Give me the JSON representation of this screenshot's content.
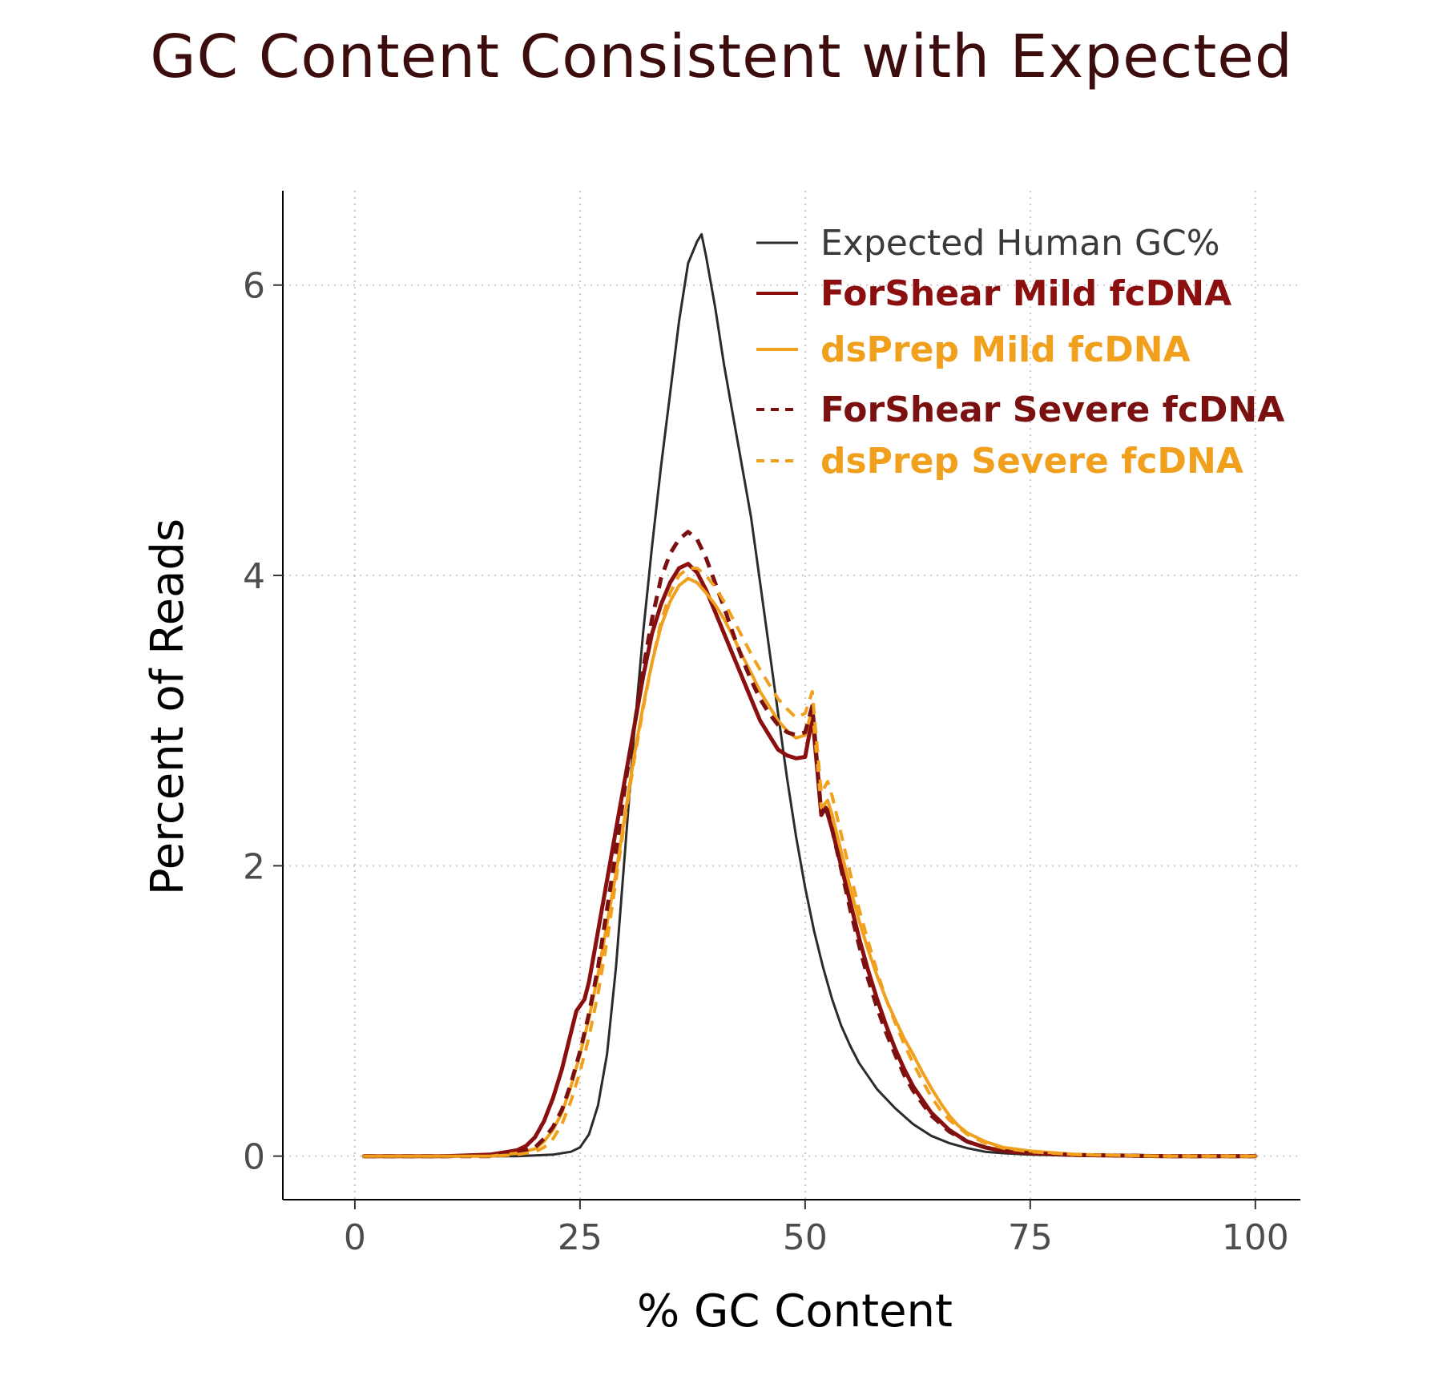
{
  "chart_data": {
    "type": "line",
    "title": "GC Content Consistent with Expected",
    "xlabel": "% GC Content",
    "ylabel": "Percent of Reads",
    "xlim": [
      -8,
      105
    ],
    "ylim": [
      -0.3,
      6.65
    ],
    "xticks": [
      0,
      25,
      50,
      75,
      100
    ],
    "yticks": [
      0,
      2,
      4,
      6
    ],
    "grid": "dotted",
    "legend_position": "top-right",
    "series": [
      {
        "name": "Expected Human GC%",
        "color": "#2b2b2b",
        "dash": "solid",
        "bold": false,
        "width": 3,
        "points": [
          [
            1,
            0
          ],
          [
            10,
            0
          ],
          [
            18,
            0
          ],
          [
            22,
            0.01
          ],
          [
            24,
            0.03
          ],
          [
            25,
            0.06
          ],
          [
            26,
            0.15
          ],
          [
            27,
            0.35
          ],
          [
            28,
            0.7
          ],
          [
            29,
            1.3
          ],
          [
            30,
            2.1
          ],
          [
            31,
            2.9
          ],
          [
            32,
            3.6
          ],
          [
            33,
            4.2
          ],
          [
            34,
            4.75
          ],
          [
            35,
            5.25
          ],
          [
            36,
            5.75
          ],
          [
            37,
            6.15
          ],
          [
            38,
            6.3
          ],
          [
            38.5,
            6.35
          ],
          [
            39,
            6.2
          ],
          [
            40,
            5.85
          ],
          [
            41,
            5.45
          ],
          [
            42,
            5.1
          ],
          [
            43,
            4.75
          ],
          [
            44,
            4.4
          ],
          [
            45,
            3.95
          ],
          [
            46,
            3.5
          ],
          [
            47,
            3.05
          ],
          [
            48,
            2.6
          ],
          [
            49,
            2.2
          ],
          [
            50,
            1.85
          ],
          [
            51,
            1.55
          ],
          [
            52,
            1.3
          ],
          [
            53,
            1.08
          ],
          [
            54,
            0.9
          ],
          [
            55,
            0.76
          ],
          [
            56,
            0.64
          ],
          [
            58,
            0.46
          ],
          [
            60,
            0.33
          ],
          [
            62,
            0.22
          ],
          [
            64,
            0.14
          ],
          [
            66,
            0.09
          ],
          [
            68,
            0.055
          ],
          [
            70,
            0.03
          ],
          [
            72,
            0.02
          ],
          [
            75,
            0.01
          ],
          [
            80,
            0.003
          ],
          [
            90,
            0
          ],
          [
            100,
            0
          ]
        ]
      },
      {
        "name": "ForShear Mild fcDNA",
        "color": "#8b0f0f",
        "dash": "solid",
        "bold": true,
        "width": 5,
        "points": [
          [
            1,
            0
          ],
          [
            10,
            0
          ],
          [
            15,
            0.01
          ],
          [
            18,
            0.04
          ],
          [
            19,
            0.07
          ],
          [
            20,
            0.13
          ],
          [
            21,
            0.24
          ],
          [
            22,
            0.4
          ],
          [
            23,
            0.6
          ],
          [
            24,
            0.85
          ],
          [
            24.6,
            1.0
          ],
          [
            25.5,
            1.08
          ],
          [
            26,
            1.2
          ],
          [
            27,
            1.55
          ],
          [
            28,
            1.9
          ],
          [
            29,
            2.25
          ],
          [
            30,
            2.6
          ],
          [
            31,
            2.95
          ],
          [
            32,
            3.3
          ],
          [
            33,
            3.6
          ],
          [
            34,
            3.8
          ],
          [
            35,
            3.95
          ],
          [
            36,
            4.05
          ],
          [
            37,
            4.08
          ],
          [
            38,
            4.02
          ],
          [
            39,
            3.9
          ],
          [
            40,
            3.75
          ],
          [
            41,
            3.6
          ],
          [
            42,
            3.45
          ],
          [
            43,
            3.3
          ],
          [
            44,
            3.15
          ],
          [
            45,
            3.0
          ],
          [
            46,
            2.9
          ],
          [
            47,
            2.8
          ],
          [
            48,
            2.76
          ],
          [
            49,
            2.74
          ],
          [
            50,
            2.75
          ],
          [
            50.8,
            3.02
          ],
          [
            51,
            2.9
          ],
          [
            51.8,
            2.35
          ],
          [
            52.3,
            2.4
          ],
          [
            53,
            2.25
          ],
          [
            54,
            2.0
          ],
          [
            55,
            1.75
          ],
          [
            56,
            1.5
          ],
          [
            57,
            1.28
          ],
          [
            58,
            1.08
          ],
          [
            59,
            0.9
          ],
          [
            60,
            0.74
          ],
          [
            61,
            0.6
          ],
          [
            62,
            0.48
          ],
          [
            64,
            0.3
          ],
          [
            66,
            0.18
          ],
          [
            68,
            0.1
          ],
          [
            70,
            0.06
          ],
          [
            72,
            0.035
          ],
          [
            75,
            0.02
          ],
          [
            80,
            0.008
          ],
          [
            90,
            0
          ],
          [
            100,
            0
          ]
        ]
      },
      {
        "name": "dsPrep Mild fcDNA",
        "color": "#f0a01c",
        "dash": "solid",
        "bold": true,
        "width": 4,
        "points": [
          [
            1,
            0
          ],
          [
            10,
            0
          ],
          [
            15,
            0
          ],
          [
            18,
            0.02
          ],
          [
            20,
            0.05
          ],
          [
            21,
            0.1
          ],
          [
            22,
            0.18
          ],
          [
            23,
            0.3
          ],
          [
            24,
            0.48
          ],
          [
            25,
            0.7
          ],
          [
            26,
            0.95
          ],
          [
            27,
            1.25
          ],
          [
            28,
            1.6
          ],
          [
            29,
            1.95
          ],
          [
            30,
            2.35
          ],
          [
            31,
            2.75
          ],
          [
            32,
            3.1
          ],
          [
            33,
            3.4
          ],
          [
            34,
            3.65
          ],
          [
            35,
            3.82
          ],
          [
            36,
            3.93
          ],
          [
            37,
            3.98
          ],
          [
            38,
            3.95
          ],
          [
            39,
            3.88
          ],
          [
            40,
            3.8
          ],
          [
            41,
            3.7
          ],
          [
            42,
            3.58
          ],
          [
            43,
            3.45
          ],
          [
            44,
            3.33
          ],
          [
            45,
            3.2
          ],
          [
            46,
            3.1
          ],
          [
            47,
            3.0
          ],
          [
            48,
            2.93
          ],
          [
            49,
            2.88
          ],
          [
            50,
            2.9
          ],
          [
            50.8,
            3.08
          ],
          [
            51,
            2.95
          ],
          [
            51.8,
            2.4
          ],
          [
            52.5,
            2.45
          ],
          [
            53,
            2.35
          ],
          [
            54,
            2.1
          ],
          [
            55,
            1.85
          ],
          [
            56,
            1.62
          ],
          [
            57,
            1.42
          ],
          [
            58,
            1.24
          ],
          [
            59,
            1.08
          ],
          [
            60,
            0.94
          ],
          [
            61,
            0.81
          ],
          [
            62,
            0.7
          ],
          [
            63,
            0.58
          ],
          [
            64,
            0.47
          ],
          [
            65,
            0.37
          ],
          [
            66,
            0.28
          ],
          [
            67,
            0.21
          ],
          [
            68,
            0.16
          ],
          [
            70,
            0.1
          ],
          [
            72,
            0.06
          ],
          [
            75,
            0.035
          ],
          [
            80,
            0.012
          ],
          [
            90,
            0
          ],
          [
            100,
            0
          ]
        ]
      },
      {
        "name": "ForShear Severe fcDNA",
        "color": "#7a1010",
        "dash": "dashed",
        "bold": true,
        "width": 5,
        "points": [
          [
            1,
            0
          ],
          [
            10,
            0
          ],
          [
            15,
            0
          ],
          [
            18,
            0.02
          ],
          [
            20,
            0.06
          ],
          [
            21,
            0.12
          ],
          [
            22,
            0.2
          ],
          [
            23,
            0.32
          ],
          [
            24,
            0.5
          ],
          [
            25,
            0.72
          ],
          [
            26,
            0.98
          ],
          [
            27,
            1.3
          ],
          [
            28,
            1.7
          ],
          [
            29,
            2.1
          ],
          [
            30,
            2.55
          ],
          [
            31,
            2.95
          ],
          [
            32,
            3.35
          ],
          [
            33,
            3.7
          ],
          [
            34,
            3.98
          ],
          [
            35,
            4.15
          ],
          [
            36,
            4.25
          ],
          [
            37,
            4.3
          ],
          [
            38,
            4.25
          ],
          [
            39,
            4.12
          ],
          [
            40,
            3.95
          ],
          [
            41,
            3.78
          ],
          [
            42,
            3.6
          ],
          [
            43,
            3.43
          ],
          [
            44,
            3.28
          ],
          [
            45,
            3.15
          ],
          [
            46,
            3.05
          ],
          [
            47,
            2.97
          ],
          [
            48,
            2.92
          ],
          [
            49,
            2.9
          ],
          [
            50,
            2.92
          ],
          [
            50.8,
            3.1
          ],
          [
            51,
            2.95
          ],
          [
            51.8,
            2.35
          ],
          [
            52.3,
            2.42
          ],
          [
            53,
            2.25
          ],
          [
            54,
            1.98
          ],
          [
            55,
            1.7
          ],
          [
            56,
            1.45
          ],
          [
            57,
            1.22
          ],
          [
            58,
            1.02
          ],
          [
            59,
            0.85
          ],
          [
            60,
            0.7
          ],
          [
            61,
            0.56
          ],
          [
            62,
            0.45
          ],
          [
            64,
            0.28
          ],
          [
            66,
            0.17
          ],
          [
            68,
            0.1
          ],
          [
            70,
            0.06
          ],
          [
            72,
            0.035
          ],
          [
            75,
            0.02
          ],
          [
            80,
            0.008
          ],
          [
            90,
            0
          ],
          [
            100,
            0
          ]
        ]
      },
      {
        "name": "dsPrep Severe fcDNA",
        "color": "#f0a01c",
        "dash": "dashed",
        "bold": true,
        "width": 4,
        "points": [
          [
            1,
            0
          ],
          [
            10,
            0
          ],
          [
            15,
            0
          ],
          [
            18,
            0.01
          ],
          [
            20,
            0.03
          ],
          [
            21,
            0.06
          ],
          [
            22,
            0.12
          ],
          [
            23,
            0.22
          ],
          [
            24,
            0.38
          ],
          [
            25,
            0.58
          ],
          [
            26,
            0.82
          ],
          [
            27,
            1.12
          ],
          [
            28,
            1.48
          ],
          [
            29,
            1.9
          ],
          [
            30,
            2.32
          ],
          [
            31,
            2.72
          ],
          [
            32,
            3.08
          ],
          [
            33,
            3.4
          ],
          [
            34,
            3.68
          ],
          [
            35,
            3.88
          ],
          [
            36,
            4.0
          ],
          [
            37,
            4.05
          ],
          [
            38,
            4.05
          ],
          [
            39,
            4.0
          ],
          [
            40,
            3.92
          ],
          [
            41,
            3.82
          ],
          [
            42,
            3.7
          ],
          [
            43,
            3.58
          ],
          [
            44,
            3.46
          ],
          [
            45,
            3.35
          ],
          [
            46,
            3.25
          ],
          [
            47,
            3.15
          ],
          [
            48,
            3.08
          ],
          [
            49,
            3.02
          ],
          [
            50,
            3.05
          ],
          [
            50.8,
            3.2
          ],
          [
            51,
            3.05
          ],
          [
            51.8,
            2.5
          ],
          [
            52.5,
            2.58
          ],
          [
            53,
            2.48
          ],
          [
            54,
            2.22
          ],
          [
            55,
            1.95
          ],
          [
            56,
            1.7
          ],
          [
            57,
            1.48
          ],
          [
            58,
            1.27
          ],
          [
            59,
            1.08
          ],
          [
            60,
            0.92
          ],
          [
            61,
            0.77
          ],
          [
            62,
            0.64
          ],
          [
            63,
            0.52
          ],
          [
            64,
            0.41
          ],
          [
            65,
            0.32
          ],
          [
            66,
            0.25
          ],
          [
            68,
            0.15
          ],
          [
            70,
            0.09
          ],
          [
            72,
            0.055
          ],
          [
            75,
            0.03
          ],
          [
            80,
            0.01
          ],
          [
            90,
            0
          ],
          [
            100,
            0
          ]
        ]
      }
    ]
  }
}
